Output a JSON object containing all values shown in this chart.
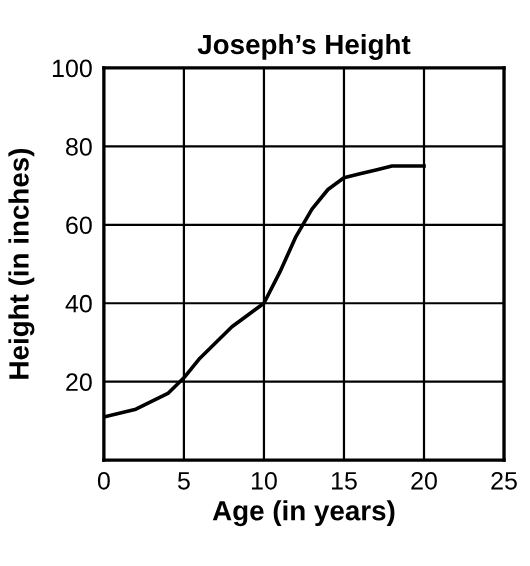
{
  "chart_data": {
    "type": "line",
    "title": "Joseph’s Height",
    "xlabel": "Age (in years)",
    "ylabel": "Height (in inches)",
    "series": [
      {
        "color": "#000000",
        "x": [
          0,
          2,
          4,
          5,
          6,
          7,
          8,
          9,
          10,
          11,
          12,
          13,
          14,
          15,
          16,
          17,
          18,
          19,
          20
        ],
        "values": [
          11,
          13,
          17,
          21,
          26,
          30,
          34,
          37,
          40,
          48,
          57,
          64,
          69,
          72,
          73,
          74,
          75,
          75,
          75
        ]
      }
    ],
    "xlim": [
      0,
      25
    ],
    "xticks": [
      0,
      5,
      10,
      15,
      20,
      25
    ],
    "ylim": [
      0,
      100
    ],
    "yticks": [
      20,
      40,
      60,
      80,
      100
    ],
    "grid": true,
    "marker": "none",
    "line_style": "solid",
    "legend": false
  }
}
